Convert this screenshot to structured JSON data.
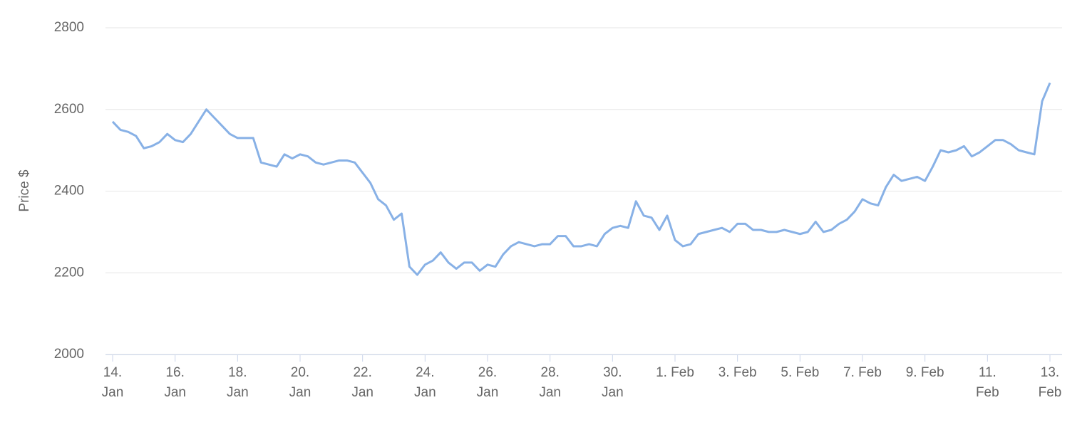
{
  "chart_data": {
    "type": "line",
    "y_label": "Price $",
    "color": "#88b1e6",
    "categories": [
      "14. Jan",
      null,
      null,
      null,
      null,
      null,
      null,
      null,
      "16. Jan",
      null,
      null,
      null,
      null,
      null,
      null,
      null,
      "18. Jan",
      null,
      null,
      null,
      null,
      null,
      null,
      null,
      "20. Jan",
      null,
      null,
      null,
      null,
      null,
      null,
      null,
      "22. Jan",
      null,
      null,
      null,
      null,
      null,
      null,
      null,
      "24. Jan",
      null,
      null,
      null,
      null,
      null,
      null,
      null,
      "26. Jan",
      null,
      null,
      null,
      null,
      null,
      null,
      null,
      "28. Jan",
      null,
      null,
      null,
      null,
      null,
      null,
      null,
      "30. Jan",
      null,
      null,
      null,
      null,
      null,
      null,
      null,
      "1. Feb",
      null,
      null,
      null,
      null,
      null,
      null,
      null,
      "3. Feb",
      null,
      null,
      null,
      null,
      null,
      null,
      null,
      "5. Feb",
      null,
      null,
      null,
      null,
      null,
      null,
      null,
      "7. Feb",
      null,
      null,
      null,
      null,
      null,
      null,
      null,
      "9. Feb",
      null,
      null,
      null,
      null,
      null,
      null,
      null,
      "11. Feb",
      null,
      null,
      null,
      null,
      null,
      null,
      null,
      "13. Feb"
    ],
    "values": [
      2570,
      2550,
      2545,
      2535,
      2505,
      2510,
      2520,
      2540,
      2525,
      2520,
      2540,
      2570,
      2600,
      2580,
      2560,
      2540,
      2530,
      2530,
      2530,
      2470,
      2465,
      2460,
      2490,
      2480,
      2490,
      2485,
      2470,
      2465,
      2470,
      2475,
      2475,
      2470,
      2445,
      2420,
      2380,
      2365,
      2330,
      2345,
      2215,
      2195,
      2220,
      2230,
      2250,
      2225,
      2210,
      2225,
      2225,
      2205,
      2220,
      2215,
      2245,
      2265,
      2275,
      2270,
      2265,
      2270,
      2270,
      2290,
      2290,
      2265,
      2265,
      2270,
      2265,
      2295,
      2310,
      2315,
      2310,
      2375,
      2340,
      2335,
      2305,
      2340,
      2280,
      2265,
      2270,
      2295,
      2300,
      2305,
      2310,
      2300,
      2320,
      2320,
      2305,
      2305,
      2300,
      2300,
      2305,
      2300,
      2295,
      2300,
      2325,
      2300,
      2305,
      2320,
      2330,
      2350,
      2380,
      2370,
      2365,
      2410,
      2440,
      2425,
      2430,
      2435,
      2425,
      2460,
      2500,
      2495,
      2500,
      2510,
      2485,
      2495,
      2510,
      2525,
      2525,
      2515,
      2500,
      2495,
      2490,
      2620,
      2665
    ],
    "ylim": [
      2000,
      2800
    ],
    "yticks": [
      2000,
      2200,
      2400,
      2600,
      2800
    ],
    "grid": true
  }
}
